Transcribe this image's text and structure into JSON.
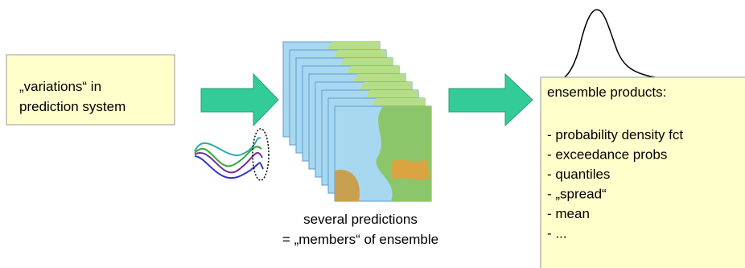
{
  "box_left": {
    "lines": [
      "„variations“ in",
      "prediction system"
    ]
  },
  "caption": {
    "lines": [
      "several predictions",
      "= „members“ of ensemble"
    ]
  },
  "box_right": {
    "title": "ensemble products:",
    "items": [
      "- probability density fct",
      "- exceedance probs",
      "- quantiles",
      "- „spread“",
      "- mean",
      "- ..."
    ]
  }
}
